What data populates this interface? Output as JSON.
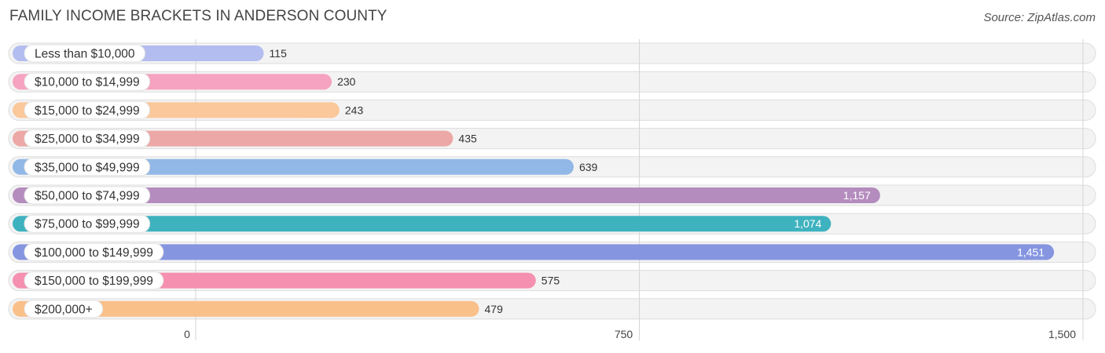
{
  "header": {
    "title": "FAMILY INCOME BRACKETS IN ANDERSON COUNTY",
    "source": "Source: ZipAtlas.com"
  },
  "chart_data": {
    "type": "bar",
    "orientation": "horizontal",
    "title": "FAMILY INCOME BRACKETS IN ANDERSON COUNTY",
    "categories": [
      "Less than $10,000",
      "$10,000 to $14,999",
      "$15,000 to $24,999",
      "$25,000 to $34,999",
      "$35,000 to $49,999",
      "$50,000 to $74,999",
      "$75,000 to $99,999",
      "$100,000 to $149,999",
      "$150,000 to $199,999",
      "$200,000+"
    ],
    "values": [
      115,
      230,
      243,
      435,
      639,
      1157,
      1074,
      1451,
      575,
      479
    ],
    "value_labels": [
      "115",
      "230",
      "243",
      "435",
      "639",
      "1,157",
      "1,074",
      "1,451",
      "575",
      "479"
    ],
    "colors": [
      "#b3bdf0",
      "#f5a3c0",
      "#fac89a",
      "#eca8a6",
      "#91b8e6",
      "#b48cbe",
      "#3fb2bf",
      "#8595e0",
      "#f590b0",
      "#fac08a"
    ],
    "value_label_inside": [
      false,
      false,
      false,
      false,
      false,
      true,
      true,
      true,
      false,
      false
    ],
    "xticks": [
      0,
      750,
      1500
    ],
    "xtick_labels": [
      "0",
      "750",
      "1,500"
    ],
    "xlim": [
      0,
      1500
    ],
    "xlabel": "",
    "ylabel": "",
    "grid": true
  }
}
